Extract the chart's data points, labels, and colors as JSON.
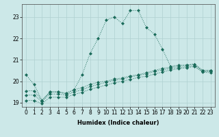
{
  "xlabel": "Humidex (Indice chaleur)",
  "x_values": [
    0,
    1,
    2,
    3,
    4,
    5,
    6,
    7,
    8,
    9,
    10,
    11,
    12,
    13,
    14,
    15,
    16,
    17,
    18,
    19,
    20,
    21,
    22,
    23
  ],
  "line1": [
    20.3,
    19.85,
    19.1,
    19.5,
    19.5,
    19.4,
    19.6,
    20.3,
    21.3,
    22.0,
    22.85,
    23.0,
    22.7,
    23.3,
    23.3,
    22.5,
    22.2,
    21.5,
    20.7,
    20.75,
    20.75,
    20.8,
    20.5,
    20.5
  ],
  "line2": [
    19.55,
    19.55,
    19.1,
    19.5,
    19.5,
    19.45,
    19.6,
    19.7,
    19.85,
    19.95,
    20.0,
    20.1,
    20.15,
    20.25,
    20.3,
    20.4,
    20.5,
    20.6,
    20.65,
    20.7,
    20.75,
    20.8,
    20.5,
    20.5
  ],
  "line3": [
    19.35,
    19.35,
    19.05,
    19.4,
    19.4,
    19.35,
    19.5,
    19.6,
    19.75,
    19.85,
    19.95,
    20.05,
    20.1,
    20.2,
    20.27,
    20.35,
    20.45,
    20.53,
    20.6,
    20.63,
    20.68,
    20.73,
    20.45,
    20.45
  ],
  "line4": [
    19.1,
    19.1,
    18.95,
    19.25,
    19.25,
    19.25,
    19.38,
    19.48,
    19.62,
    19.72,
    19.82,
    19.92,
    20.0,
    20.08,
    20.18,
    20.23,
    20.33,
    20.43,
    20.52,
    20.58,
    20.63,
    20.68,
    20.42,
    20.4
  ],
  "line_color": "#1a6b5a",
  "bg_color": "#cce8e8",
  "grid_color": "#afd0d0",
  "ylim": [
    18.8,
    23.6
  ],
  "yticks": [
    19,
    20,
    21,
    22,
    23
  ],
  "tick_fontsize": 5.5,
  "xlabel_fontsize": 6.0
}
